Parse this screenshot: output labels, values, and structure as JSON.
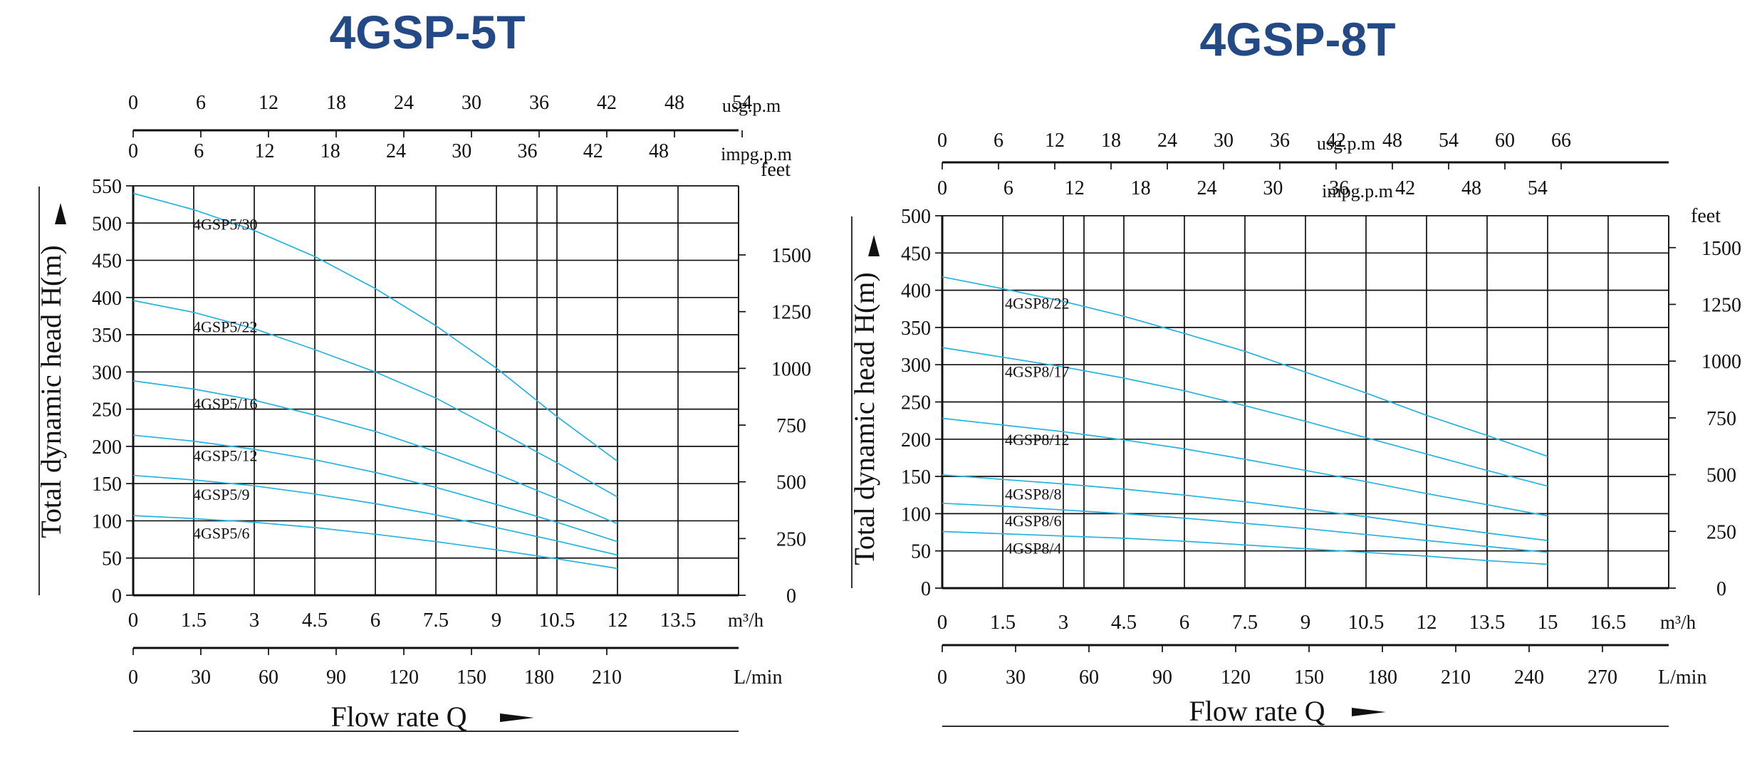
{
  "chart_data": [
    {
      "type": "line",
      "title": "4GSP-5T",
      "ylabel": "Total dynamic head H(m)",
      "xlabel": "Flow rate Q",
      "x_unit": "m³/h",
      "ylim": [
        0,
        550
      ],
      "xlim": [
        0,
        15
      ],
      "y_ticks": [
        0,
        50,
        100,
        150,
        200,
        250,
        300,
        350,
        400,
        450,
        500,
        550
      ],
      "x_ticks": [
        "0",
        "1.5",
        "3",
        "4.5",
        "6",
        "7.5",
        "9",
        "10.5",
        "12",
        "13.5"
      ],
      "feet_axis": {
        "label": "feet",
        "ticks": [
          0,
          250,
          500,
          750,
          1000,
          1250,
          1500
        ]
      },
      "usgpm_axis": {
        "label": "usg.p.m",
        "ticks": [
          0,
          6,
          12,
          18,
          24,
          30,
          36,
          42,
          48,
          54
        ]
      },
      "impgpm_axis": {
        "label": "impg.p.m",
        "ticks": [
          0,
          6,
          12,
          18,
          24,
          30,
          36,
          42,
          48
        ]
      },
      "lmin_axis": {
        "label": "L/min",
        "ticks": [
          0,
          30,
          60,
          90,
          120,
          150,
          180,
          210
        ]
      },
      "series": [
        {
          "name": "4GSP5/30",
          "x": [
            0,
            1.5,
            3,
            4.5,
            6,
            7.5,
            9,
            10.5,
            12
          ],
          "y": [
            540,
            518,
            490,
            455,
            412,
            362,
            305,
            240,
            180
          ]
        },
        {
          "name": "4GSP5/22",
          "x": [
            0,
            1.5,
            3,
            4.5,
            6,
            7.5,
            9,
            10.5,
            12
          ],
          "y": [
            396,
            380,
            358,
            330,
            300,
            265,
            222,
            178,
            132
          ]
        },
        {
          "name": "4GSP5/16",
          "x": [
            0,
            1.5,
            3,
            4.5,
            6,
            7.5,
            9,
            10.5,
            12
          ],
          "y": [
            288,
            277,
            262,
            242,
            220,
            193,
            163,
            130,
            96
          ]
        },
        {
          "name": "4GSP5/12",
          "x": [
            0,
            1.5,
            3,
            4.5,
            6,
            7.5,
            9,
            10.5,
            12
          ],
          "y": [
            215,
            207,
            196,
            182,
            165,
            145,
            122,
            98,
            72
          ]
        },
        {
          "name": "4GSP5/9",
          "x": [
            0,
            1.5,
            3,
            4.5,
            6,
            7.5,
            9,
            10.5,
            12
          ],
          "y": [
            161,
            155,
            147,
            136,
            123,
            108,
            91,
            73,
            54
          ]
        },
        {
          "name": "4GSP5/6",
          "x": [
            0,
            1.5,
            3,
            4.5,
            6,
            7.5,
            9,
            10.5,
            12
          ],
          "y": [
            107,
            103,
            98,
            91,
            82,
            72,
            61,
            49,
            36
          ]
        }
      ]
    },
    {
      "type": "line",
      "title": "4GSP-8T",
      "ylabel": "Total dynamic head H(m)",
      "xlabel": "Flow rate Q",
      "x_unit": "m³/h",
      "ylim": [
        0,
        500
      ],
      "xlim": [
        0,
        18
      ],
      "y_ticks": [
        0,
        50,
        100,
        150,
        200,
        250,
        300,
        350,
        400,
        450,
        500
      ],
      "x_ticks": [
        "0",
        "1.5",
        "3",
        "4.5",
        "6",
        "7.5",
        "9",
        "10.5",
        "12",
        "13.5",
        "15",
        "16.5"
      ],
      "feet_axis": {
        "label": "feet",
        "ticks": [
          0,
          250,
          500,
          750,
          1000,
          1250,
          1500
        ]
      },
      "usgpm_axis": {
        "label": "usg.p.m",
        "ticks": [
          0,
          6,
          12,
          18,
          24,
          30,
          36,
          42,
          48,
          54,
          60,
          66
        ]
      },
      "impgpm_axis": {
        "label": "impg.p.m",
        "ticks": [
          0,
          6,
          12,
          18,
          24,
          30,
          36,
          42,
          48,
          54
        ]
      },
      "lmin_axis": {
        "label": "L/min",
        "ticks": [
          0,
          30,
          60,
          90,
          120,
          150,
          180,
          210,
          240,
          270
        ]
      },
      "series": [
        {
          "name": "4GSP8/22",
          "x": [
            0,
            1.5,
            3,
            4.5,
            6,
            7.5,
            9,
            10.5,
            12,
            13.5,
            15
          ],
          "y": [
            418,
            402,
            385,
            365,
            342,
            318,
            290,
            262,
            232,
            205,
            177
          ]
        },
        {
          "name": "4GSP8/17",
          "x": [
            0,
            1.5,
            3,
            4.5,
            6,
            7.5,
            9,
            10.5,
            12,
            13.5,
            15
          ],
          "y": [
            323,
            310,
            297,
            282,
            265,
            245,
            224,
            202,
            180,
            158,
            137
          ]
        },
        {
          "name": "4GSP8/12",
          "x": [
            0,
            1.5,
            3,
            4.5,
            6,
            7.5,
            9,
            10.5,
            12,
            13.5,
            15
          ],
          "y": [
            228,
            219,
            210,
            199,
            187,
            173,
            158,
            143,
            127,
            112,
            97
          ]
        },
        {
          "name": "4GSP8/8",
          "x": [
            0,
            1.5,
            3,
            4.5,
            6,
            7.5,
            9,
            10.5,
            12,
            13.5,
            15
          ],
          "y": [
            152,
            146,
            140,
            133,
            125,
            116,
            106,
            96,
            85,
            74,
            64
          ]
        },
        {
          "name": "4GSP8/6",
          "x": [
            0,
            1.5,
            3,
            4.5,
            6,
            7.5,
            9,
            10.5,
            12,
            13.5,
            15
          ],
          "y": [
            114,
            110,
            105,
            100,
            94,
            87,
            80,
            72,
            64,
            56,
            48
          ]
        },
        {
          "name": "4GSP8/4",
          "x": [
            0,
            1.5,
            3,
            4.5,
            6,
            7.5,
            9,
            10.5,
            12,
            13.5,
            15
          ],
          "y": [
            76,
            73,
            70,
            67,
            63,
            58,
            53,
            48,
            43,
            37,
            32
          ]
        }
      ]
    }
  ]
}
